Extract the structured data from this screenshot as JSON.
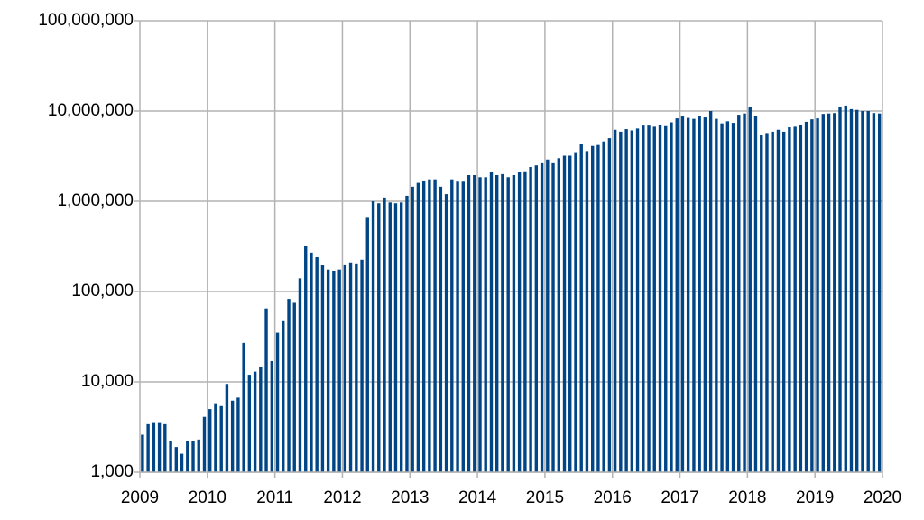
{
  "chart_data": {
    "type": "bar",
    "color": "#004586",
    "log_y": true,
    "grid": true,
    "xlim": [
      2009,
      2020
    ],
    "xticks": [
      2009,
      2010,
      2011,
      2012,
      2013,
      2014,
      2015,
      2016,
      2017,
      2018,
      2019,
      2020
    ],
    "ylim": [
      1000,
      100000000
    ],
    "yticks": [
      {
        "value": 1000,
        "label": "1,000"
      },
      {
        "value": 10000,
        "label": "10,000"
      },
      {
        "value": 100000,
        "label": "100,000"
      },
      {
        "value": 1000000,
        "label": "1,000,000"
      },
      {
        "value": 10000000,
        "label": "10,000,000"
      },
      {
        "value": 100000000,
        "label": "100,000,000"
      }
    ],
    "x": [
      2009,
      2009.083,
      2009.167,
      2009.25,
      2009.333,
      2009.417,
      2009.5,
      2009.583,
      2009.667,
      2009.75,
      2009.833,
      2009.917,
      2010,
      2010.083,
      2010.167,
      2010.25,
      2010.333,
      2010.417,
      2010.5,
      2010.583,
      2010.667,
      2010.75,
      2010.833,
      2010.917,
      2011,
      2011.083,
      2011.167,
      2011.25,
      2011.333,
      2011.417,
      2011.5,
      2011.583,
      2011.667,
      2011.75,
      2011.833,
      2011.917,
      2012,
      2012.083,
      2012.167,
      2012.25,
      2012.333,
      2012.417,
      2012.5,
      2012.583,
      2012.667,
      2012.75,
      2012.833,
      2012.917,
      2013,
      2013.083,
      2013.167,
      2013.25,
      2013.333,
      2013.417,
      2013.5,
      2013.583,
      2013.667,
      2013.75,
      2013.833,
      2013.917,
      2014,
      2014.083,
      2014.167,
      2014.25,
      2014.333,
      2014.417,
      2014.5,
      2014.583,
      2014.667,
      2014.75,
      2014.833,
      2014.917,
      2015,
      2015.083,
      2015.167,
      2015.25,
      2015.333,
      2015.417,
      2015.5,
      2015.583,
      2015.667,
      2015.75,
      2015.833,
      2015.917,
      2016,
      2016.083,
      2016.167,
      2016.25,
      2016.333,
      2016.417,
      2016.5,
      2016.583,
      2016.667,
      2016.75,
      2016.833,
      2016.917,
      2017,
      2017.083,
      2017.167,
      2017.25,
      2017.333,
      2017.417,
      2017.5,
      2017.583,
      2017.667,
      2017.75,
      2017.833,
      2017.917,
      2018,
      2018.083,
      2018.167,
      2018.25,
      2018.333,
      2018.417,
      2018.5,
      2018.583,
      2018.667,
      2018.75,
      2018.833,
      2018.917,
      2019,
      2019.083,
      2019.167,
      2019.25,
      2019.333,
      2019.417,
      2019.5,
      2019.583,
      2019.667,
      2019.75,
      2019.833,
      2019.917
    ],
    "values": [
      2600,
      3400,
      3500,
      3500,
      3400,
      2200,
      1900,
      1600,
      2200,
      2200,
      2300,
      4100,
      5000,
      5800,
      5400,
      9500,
      6200,
      6700,
      27000,
      12000,
      13000,
      14500,
      65000,
      17000,
      35000,
      47000,
      83000,
      75000,
      140000,
      320000,
      270000,
      240000,
      195000,
      175000,
      170000,
      175000,
      200000,
      210000,
      205000,
      225000,
      670000,
      1000000,
      950000,
      1100000,
      970000,
      950000,
      970000,
      1150000,
      1450000,
      1600000,
      1700000,
      1750000,
      1750000,
      1450000,
      1200000,
      1750000,
      1650000,
      1650000,
      1950000,
      1950000,
      1850000,
      1850000,
      2100000,
      1950000,
      2000000,
      1850000,
      1950000,
      2100000,
      2150000,
      2400000,
      2500000,
      2700000,
      2900000,
      2700000,
      3000000,
      3200000,
      3200000,
      3500000,
      4300000,
      3600000,
      4100000,
      4200000,
      4600000,
      5000000,
      6200000,
      5900000,
      6300000,
      6100000,
      6400000,
      6900000,
      6900000,
      6700000,
      7000000,
      6800000,
      7500000,
      8300000,
      8700000,
      8400000,
      8200000,
      8900000,
      8500000,
      10000000,
      8200000,
      7300000,
      7700000,
      7400000,
      9100000,
      9400000,
      11200000,
      8800000,
      5400000,
      5700000,
      5900000,
      6200000,
      5900000,
      6600000,
      6700000,
      7000000,
      7600000,
      8100000,
      8300000,
      9300000,
      9400000,
      9500000,
      11000000,
      11500000,
      10500000,
      10300000,
      10000000,
      10000000,
      9500000,
      9400000
    ]
  }
}
